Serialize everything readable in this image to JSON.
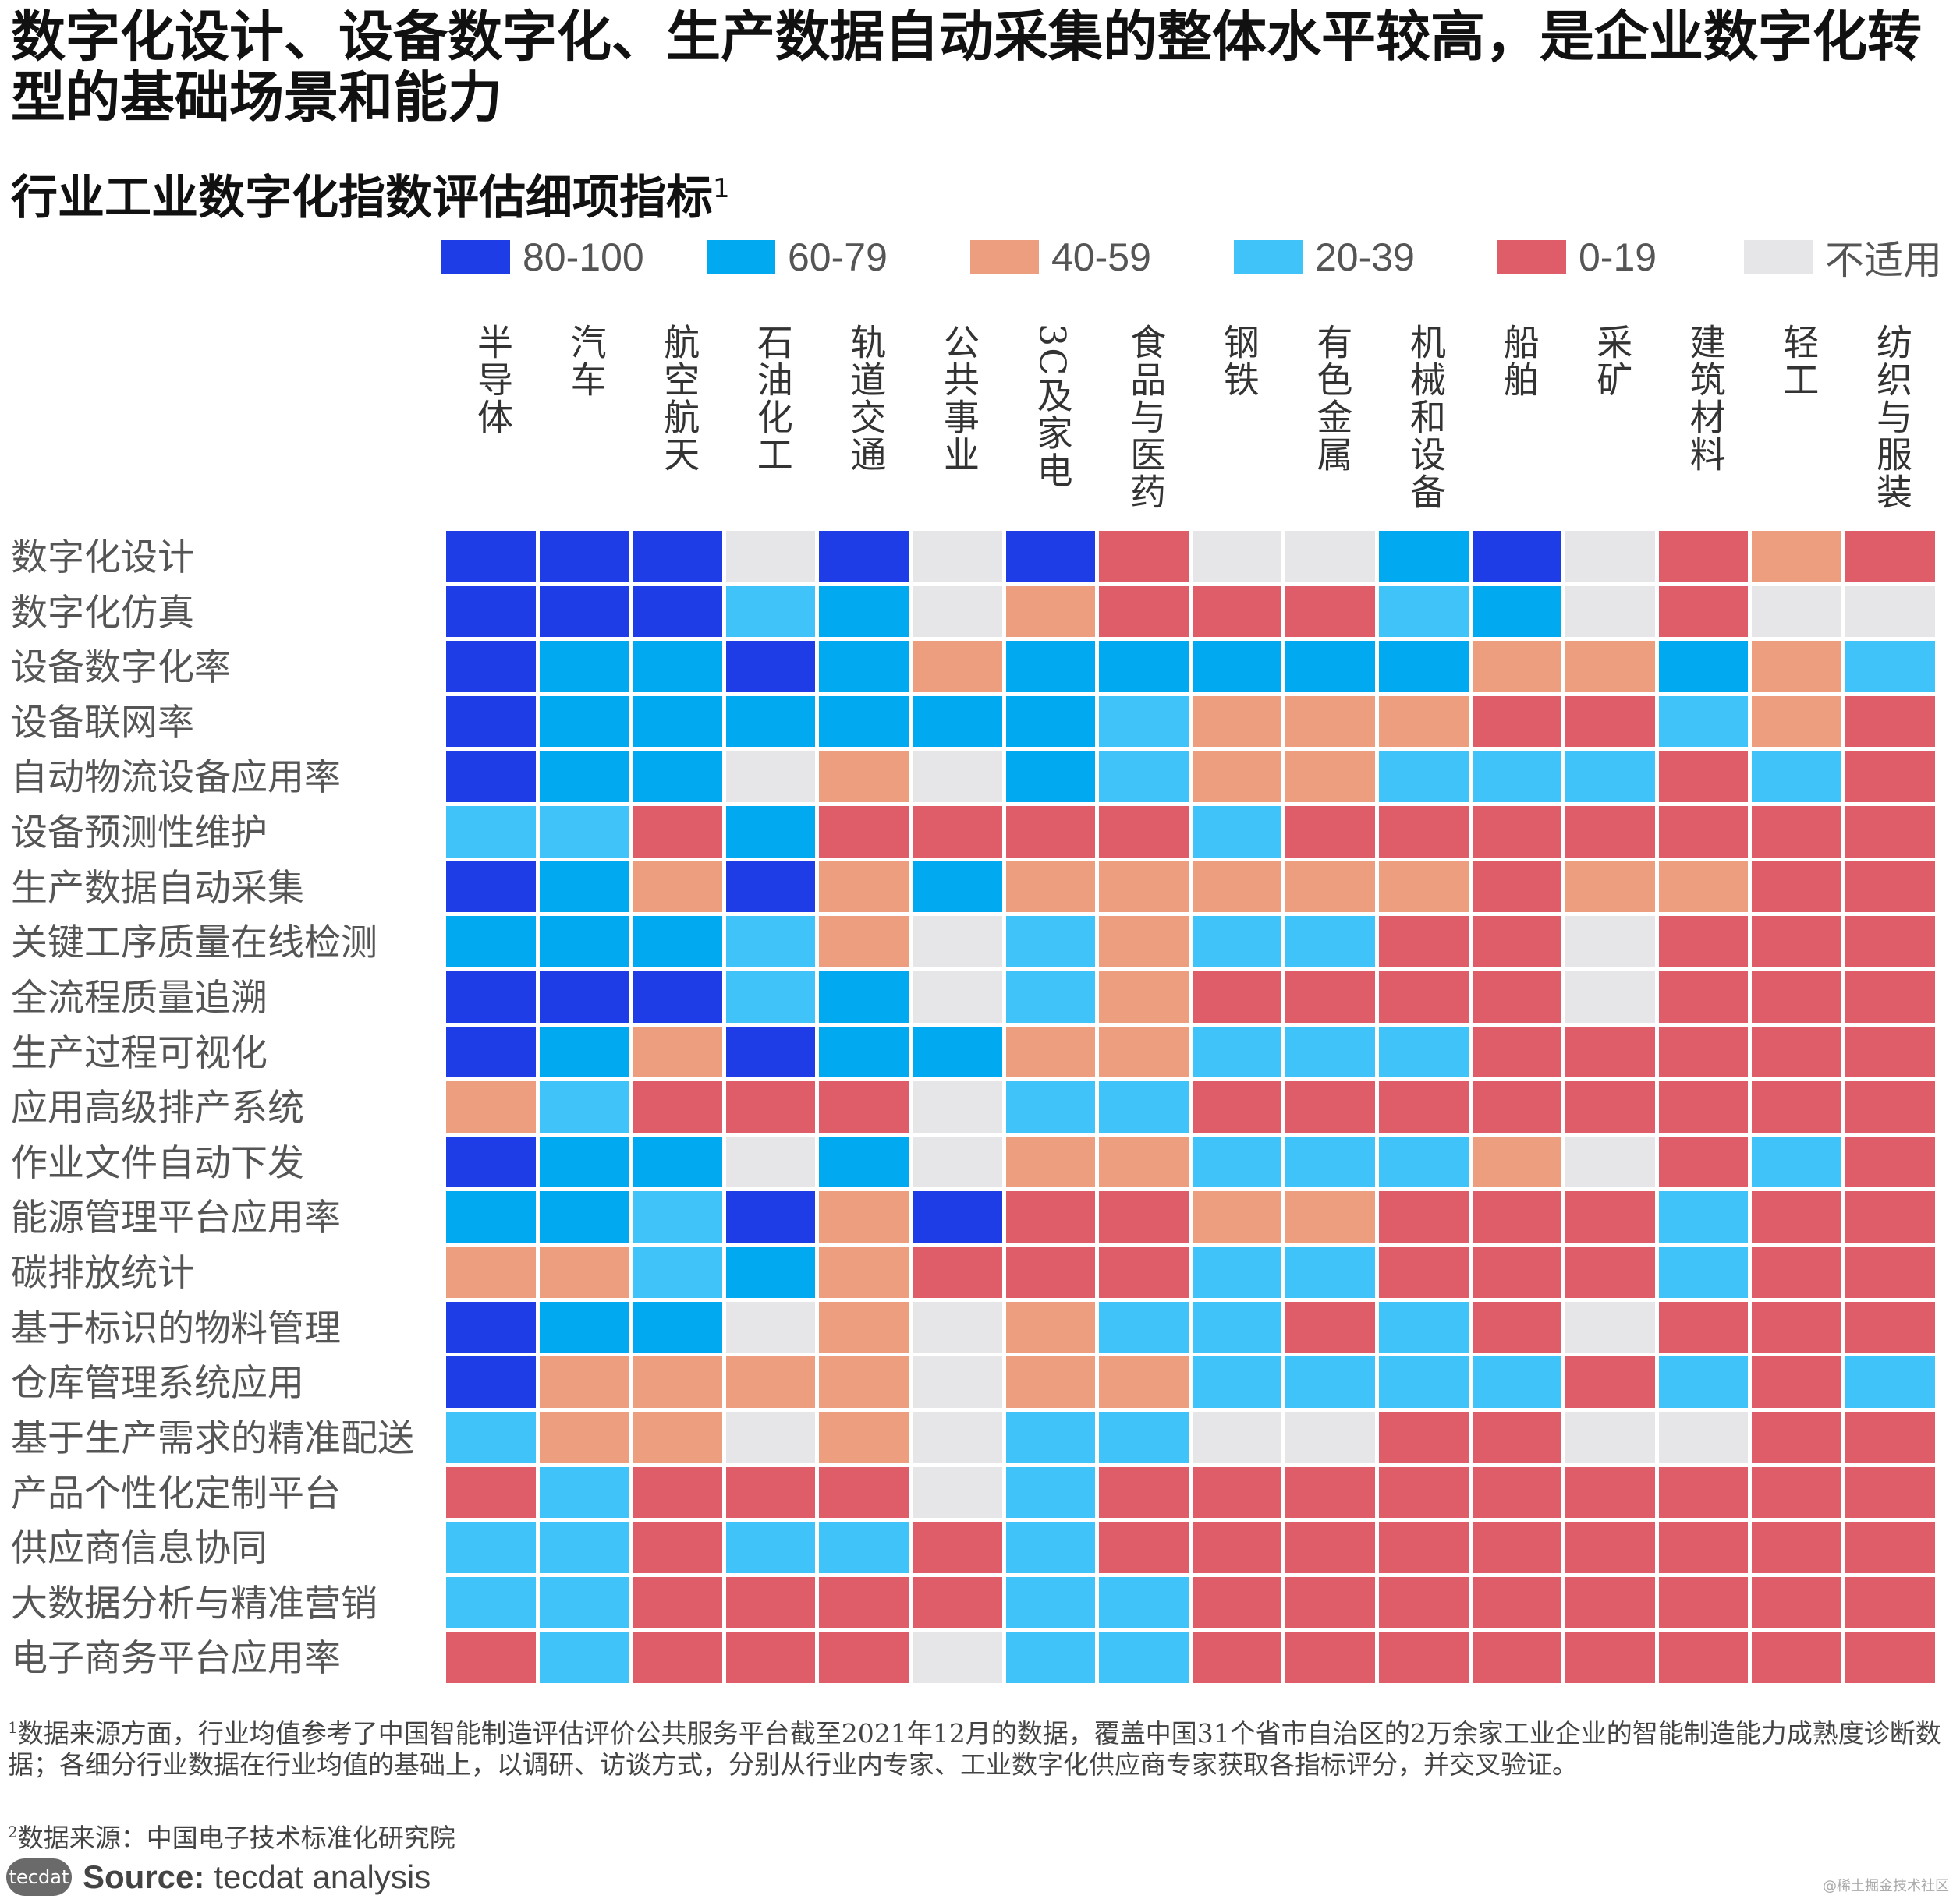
{
  "title": "数字化设计、设备数字化、生产数据自动采集的整体水平较高，是企业数字化转型的基础场景和能力",
  "subtitle": "行业工业数字化指数评估细项指标",
  "subtitle_sup": "1",
  "colors": {
    "80-100": "#1f3de6",
    "60-79": "#00a9f0",
    "40-59": "#ed9e7e",
    "20-39": "#40c3f8",
    "0-19": "#df5c69",
    "不适用": "#e6e6e8"
  },
  "chart_data": {
    "type": "heatmap",
    "title": "行业工业数字化指数评估细项指标",
    "legend": [
      "80-100",
      "60-79",
      "40-59",
      "20-39",
      "0-19",
      "不适用"
    ],
    "legend_position": "top",
    "columns": [
      "半导体",
      "汽车",
      "航空航天",
      "石油化工",
      "轨道交通",
      "公共事业",
      "3C及家电",
      "食品与医药",
      "钢铁",
      "有色金属",
      "机械和设备",
      "船舶",
      "采矿",
      "建筑材料",
      "轻工",
      "纺织与服装"
    ],
    "rows": [
      "数字化设计",
      "数字化仿真",
      "设备数字化率",
      "设备联网率",
      "自动物流设备应用率",
      "设备预测性维护",
      "生产数据自动采集",
      "关键工序质量在线检测",
      "全流程质量追溯",
      "生产过程可视化",
      "应用高级排产系统",
      "作业文件自动下发",
      "能源管理平台应用率",
      "碳排放统计",
      "基于标识的物料管理",
      "仓库管理系统应用",
      "基于生产需求的精准配送",
      "产品个性化定制平台",
      "供应商信息协同",
      "大数据分析与精准营销",
      "电子商务平台应用率"
    ],
    "values": [
      [
        "80-100",
        "80-100",
        "80-100",
        "不适用",
        "80-100",
        "不适用",
        "80-100",
        "0-19",
        "不适用",
        "不适用",
        "60-79",
        "80-100",
        "不适用",
        "0-19",
        "40-59",
        "0-19"
      ],
      [
        "80-100",
        "80-100",
        "80-100",
        "20-39",
        "60-79",
        "不适用",
        "40-59",
        "0-19",
        "0-19",
        "0-19",
        "20-39",
        "60-79",
        "不适用",
        "0-19",
        "不适用",
        "不适用"
      ],
      [
        "80-100",
        "60-79",
        "60-79",
        "80-100",
        "60-79",
        "40-59",
        "60-79",
        "60-79",
        "60-79",
        "60-79",
        "60-79",
        "40-59",
        "40-59",
        "60-79",
        "40-59",
        "20-39"
      ],
      [
        "80-100",
        "60-79",
        "60-79",
        "60-79",
        "60-79",
        "60-79",
        "60-79",
        "20-39",
        "40-59",
        "40-59",
        "40-59",
        "0-19",
        "0-19",
        "20-39",
        "40-59",
        "0-19"
      ],
      [
        "80-100",
        "60-79",
        "60-79",
        "不适用",
        "40-59",
        "不适用",
        "60-79",
        "20-39",
        "40-59",
        "40-59",
        "20-39",
        "20-39",
        "20-39",
        "0-19",
        "20-39",
        "0-19"
      ],
      [
        "20-39",
        "20-39",
        "0-19",
        "60-79",
        "0-19",
        "0-19",
        "0-19",
        "0-19",
        "20-39",
        "0-19",
        "0-19",
        "0-19",
        "0-19",
        "0-19",
        "0-19",
        "0-19"
      ],
      [
        "80-100",
        "60-79",
        "40-59",
        "80-100",
        "40-59",
        "60-79",
        "40-59",
        "40-59",
        "40-59",
        "40-59",
        "40-59",
        "0-19",
        "40-59",
        "40-59",
        "0-19",
        "0-19"
      ],
      [
        "60-79",
        "60-79",
        "60-79",
        "20-39",
        "40-59",
        "不适用",
        "20-39",
        "40-59",
        "20-39",
        "20-39",
        "0-19",
        "0-19",
        "不适用",
        "0-19",
        "0-19",
        "0-19"
      ],
      [
        "80-100",
        "80-100",
        "80-100",
        "20-39",
        "60-79",
        "不适用",
        "20-39",
        "40-59",
        "0-19",
        "0-19",
        "0-19",
        "0-19",
        "不适用",
        "0-19",
        "0-19",
        "0-19"
      ],
      [
        "80-100",
        "60-79",
        "40-59",
        "80-100",
        "60-79",
        "60-79",
        "40-59",
        "40-59",
        "20-39",
        "20-39",
        "20-39",
        "0-19",
        "0-19",
        "0-19",
        "0-19",
        "0-19"
      ],
      [
        "40-59",
        "20-39",
        "0-19",
        "0-19",
        "0-19",
        "不适用",
        "20-39",
        "20-39",
        "0-19",
        "0-19",
        "0-19",
        "0-19",
        "0-19",
        "0-19",
        "0-19",
        "0-19"
      ],
      [
        "80-100",
        "60-79",
        "60-79",
        "不适用",
        "60-79",
        "不适用",
        "40-59",
        "40-59",
        "20-39",
        "20-39",
        "20-39",
        "40-59",
        "不适用",
        "0-19",
        "20-39",
        "0-19"
      ],
      [
        "60-79",
        "60-79",
        "20-39",
        "80-100",
        "40-59",
        "80-100",
        "0-19",
        "0-19",
        "40-59",
        "40-59",
        "0-19",
        "0-19",
        "0-19",
        "20-39",
        "0-19",
        "0-19"
      ],
      [
        "40-59",
        "40-59",
        "20-39",
        "60-79",
        "40-59",
        "0-19",
        "0-19",
        "0-19",
        "20-39",
        "20-39",
        "0-19",
        "0-19",
        "0-19",
        "20-39",
        "0-19",
        "0-19"
      ],
      [
        "80-100",
        "60-79",
        "60-79",
        "不适用",
        "40-59",
        "不适用",
        "40-59",
        "20-39",
        "20-39",
        "0-19",
        "20-39",
        "0-19",
        "不适用",
        "0-19",
        "0-19",
        "0-19"
      ],
      [
        "80-100",
        "40-59",
        "40-59",
        "40-59",
        "40-59",
        "不适用",
        "40-59",
        "40-59",
        "20-39",
        "20-39",
        "20-39",
        "20-39",
        "0-19",
        "20-39",
        "0-19",
        "20-39"
      ],
      [
        "20-39",
        "40-59",
        "40-59",
        "不适用",
        "40-59",
        "不适用",
        "20-39",
        "20-39",
        "不适用",
        "不适用",
        "0-19",
        "0-19",
        "不适用",
        "不适用",
        "0-19",
        "0-19"
      ],
      [
        "0-19",
        "20-39",
        "0-19",
        "0-19",
        "0-19",
        "不适用",
        "20-39",
        "0-19",
        "0-19",
        "0-19",
        "0-19",
        "0-19",
        "0-19",
        "0-19",
        "0-19",
        "0-19"
      ],
      [
        "20-39",
        "20-39",
        "0-19",
        "20-39",
        "20-39",
        "0-19",
        "20-39",
        "0-19",
        "0-19",
        "0-19",
        "0-19",
        "0-19",
        "0-19",
        "0-19",
        "0-19",
        "0-19"
      ],
      [
        "20-39",
        "20-39",
        "0-19",
        "0-19",
        "0-19",
        "0-19",
        "20-39",
        "20-39",
        "0-19",
        "0-19",
        "0-19",
        "0-19",
        "0-19",
        "0-19",
        "0-19",
        "0-19"
      ],
      [
        "0-19",
        "20-39",
        "0-19",
        "0-19",
        "0-19",
        "不适用",
        "20-39",
        "20-39",
        "0-19",
        "0-19",
        "0-19",
        "0-19",
        "0-19",
        "0-19",
        "0-19",
        "0-19"
      ]
    ]
  },
  "footnotes": {
    "note1_mark": "1",
    "note1": "数据来源方面，行业均值参考了中国智能制造评估评价公共服务平台截至2021年12月的数据，覆盖中国31个省市自治区的2万余家工业企业的智能制造能力成熟度诊断数据；各细分行业数据在行业均值的基础上，以调研、访谈方式，分别从行业内专家、工业数字化供应商专家获取各指标评分，并交叉验证。",
    "note2_mark": "2",
    "note2": "数据来源：中国电子技术标准化研究院"
  },
  "source": {
    "logo": "tecdat",
    "label": "Source:",
    "text": "tecdat analysis"
  },
  "watermark": "@稀土掘金技术社区"
}
